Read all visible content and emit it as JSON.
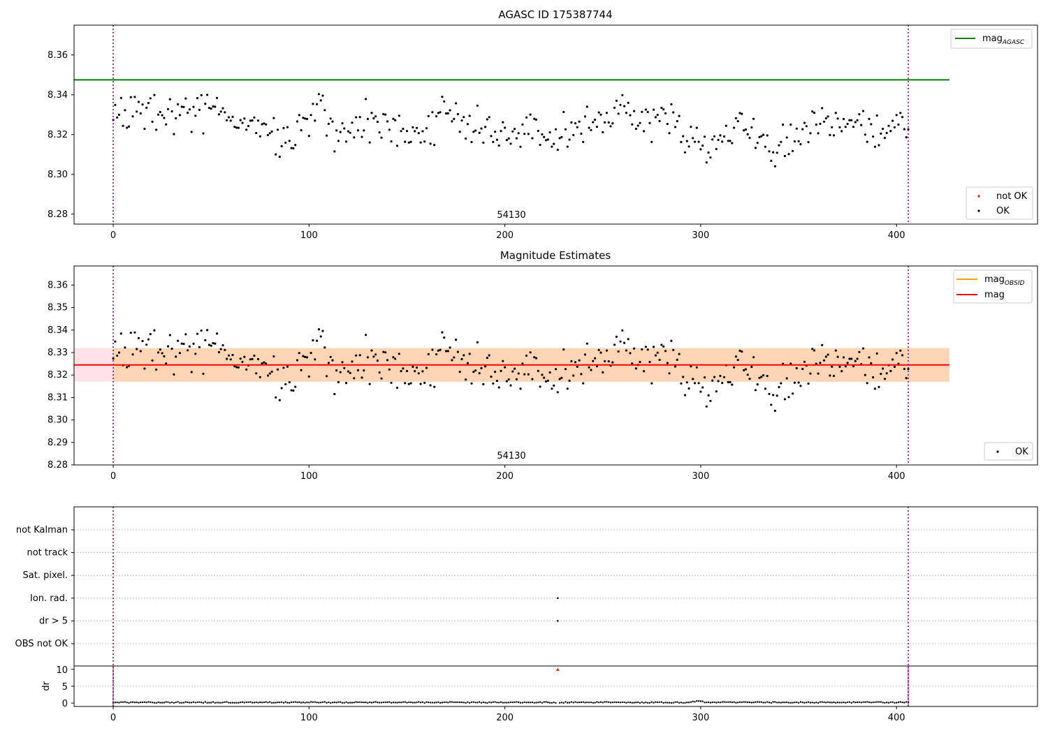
{
  "chart_data": [
    {
      "type": "scatter",
      "title": "AGASC ID 175387744",
      "xlim": [
        -20,
        472
      ],
      "ylim": [
        8.275,
        8.375
      ],
      "xticks": [
        0,
        100,
        200,
        300,
        400
      ],
      "yticks": [
        8.28,
        8.3,
        8.32,
        8.34,
        8.36
      ],
      "ytick_labels": [
        "8.28",
        "8.30",
        "8.32",
        "8.34",
        "8.36"
      ],
      "obsid_label": "54130",
      "obsid_bounds": [
        0,
        406
      ],
      "grid": false,
      "reference_lines": [
        {
          "name_base": "mag",
          "name_sub": "AGASC",
          "value": 8.3475,
          "x_range": [
            -20,
            427
          ],
          "color": "#008000"
        }
      ],
      "legend_top": {
        "placement": "top-right",
        "entries": [
          {
            "label_base": "mag",
            "label_sub": "AGASC",
            "color": "#008000",
            "kind": "line"
          }
        ]
      },
      "legend_bottom": {
        "placement": "lower-right",
        "entries": [
          {
            "label": "not OK",
            "color": "#ff0000",
            "kind": "point"
          },
          {
            "label": "OK",
            "color": "#000000",
            "kind": "point"
          }
        ]
      },
      "series_ref": "mag_points"
    },
    {
      "type": "scatter",
      "title": "Magnitude Estimates",
      "xlim": [
        -20,
        472
      ],
      "ylim": [
        8.28,
        8.3685
      ],
      "xticks": [
        0,
        100,
        200,
        300,
        400
      ],
      "yticks": [
        8.28,
        8.29,
        8.3,
        8.31,
        8.32,
        8.33,
        8.34,
        8.35,
        8.36
      ],
      "ytick_labels": [
        "8.28",
        "8.29",
        "8.30",
        "8.31",
        "8.32",
        "8.33",
        "8.34",
        "8.35",
        "8.36"
      ],
      "obsid_label": "54130",
      "obsid_bounds": [
        0,
        406
      ],
      "grid": false,
      "mag_mean": 8.3245,
      "bands": [
        {
          "x_range": [
            -20,
            427
          ],
          "y_range": [
            8.317,
            8.332
          ],
          "color": "#ffc0cb",
          "opacity": 0.45
        },
        {
          "x_range": [
            0,
            427
          ],
          "y_range": [
            8.317,
            8.332
          ],
          "color": "#ffa500",
          "opacity": 0.22
        }
      ],
      "reference_lines": [
        {
          "name": "mag",
          "value": 8.3245,
          "x_range": [
            -20,
            427
          ],
          "color": "#ff0000"
        }
      ],
      "legend_top": {
        "placement": "top-right",
        "entries": [
          {
            "label_base": "mag",
            "label_sub": "OBSID",
            "color": "#ffa500",
            "kind": "line"
          },
          {
            "label": "mag",
            "color": "#ff0000",
            "kind": "line"
          }
        ]
      },
      "legend_bottom": {
        "placement": "lower-right",
        "entries": [
          {
            "label": "OK",
            "color": "#000000",
            "kind": "point"
          }
        ]
      },
      "series_ref": "mag_points"
    },
    {
      "type": "scatter",
      "title": "",
      "xlim": [
        -20,
        472
      ],
      "flag_rows": [
        "not Kalman",
        "not track",
        "Sat. pixel.",
        "Ion. rad.",
        "dr > 5",
        "OBS not OK"
      ],
      "flagged_points": [
        {
          "x": 227,
          "flags": [
            "Ion. rad.",
            "dr > 5"
          ]
        }
      ],
      "obsid_bounds": [
        0,
        406
      ],
      "grid": true
    },
    {
      "type": "scatter",
      "title": "",
      "ylabel": "dr",
      "xlim": [
        -20,
        472
      ],
      "ylim": [
        -1,
        11
      ],
      "xticks": [
        0,
        100,
        200,
        300,
        400
      ],
      "yticks": [
        0,
        5,
        10
      ],
      "ytick_labels": [
        "0",
        "5",
        "10"
      ],
      "obsid_bounds": [
        0,
        406
      ],
      "outlier": {
        "x": 227,
        "y": 9.9,
        "color": "#ff0000"
      },
      "dr_level": 0.2
    }
  ],
  "mag_points": {
    "x_range": [
      0,
      406
    ],
    "seed": 12,
    "centers": [
      [
        0,
        8.335
      ],
      [
        15,
        8.33
      ],
      [
        30,
        8.33
      ],
      [
        50,
        8.332
      ],
      [
        70,
        8.325
      ],
      [
        90,
        8.317
      ],
      [
        105,
        8.335
      ],
      [
        115,
        8.32
      ],
      [
        130,
        8.327
      ],
      [
        145,
        8.322
      ],
      [
        160,
        8.323
      ],
      [
        172,
        8.33
      ],
      [
        185,
        8.324
      ],
      [
        200,
        8.32
      ],
      [
        215,
        8.322
      ],
      [
        230,
        8.322
      ],
      [
        240,
        8.324
      ],
      [
        255,
        8.332
      ],
      [
        270,
        8.327
      ],
      [
        280,
        8.328
      ],
      [
        295,
        8.318
      ],
      [
        310,
        8.315
      ],
      [
        320,
        8.328
      ],
      [
        335,
        8.313
      ],
      [
        350,
        8.318
      ],
      [
        360,
        8.327
      ],
      [
        375,
        8.328
      ],
      [
        385,
        8.322
      ],
      [
        395,
        8.322
      ],
      [
        406,
        8.324
      ]
    ],
    "spread": 0.0045
  }
}
